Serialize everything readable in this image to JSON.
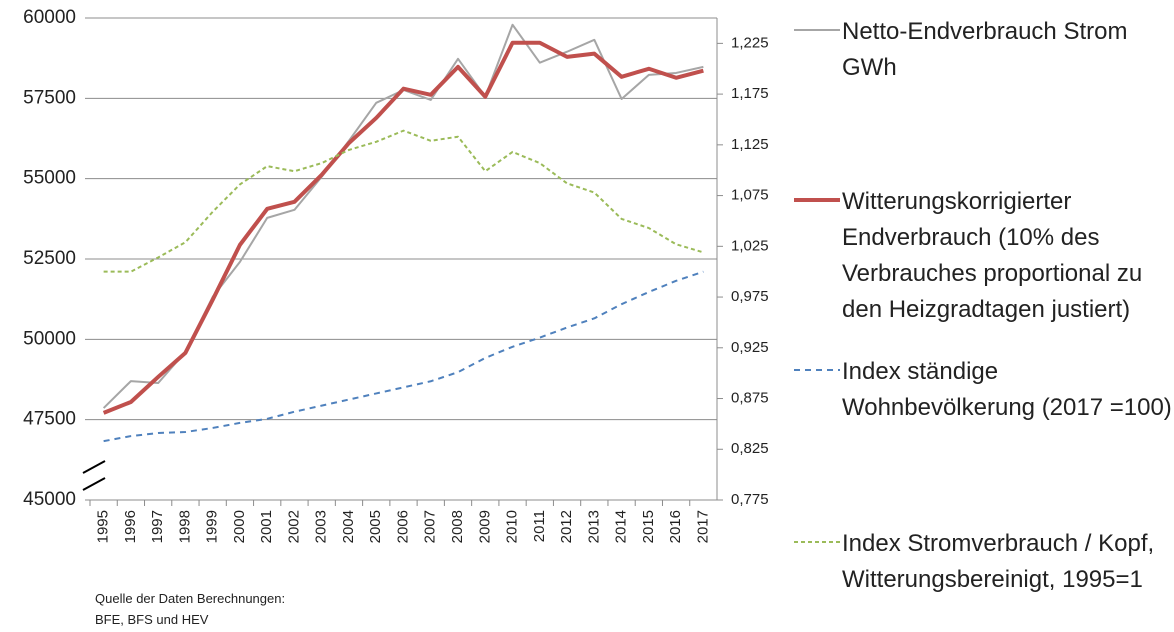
{
  "chart_data": {
    "type": "line",
    "categories": [
      "1995",
      "1996",
      "1997",
      "1998",
      "1999",
      "2000",
      "2001",
      "2002",
      "2003",
      "2004",
      "2005",
      "2006",
      "2007",
      "2008",
      "2009",
      "2010",
      "2011",
      "2012",
      "2013",
      "2014",
      "2015",
      "2016",
      "2017"
    ],
    "series": [
      {
        "name": "Netto-Endverbrauch Strom GWh",
        "color": "#a6a6a6",
        "width": 2,
        "dash": "none",
        "axis": "y",
        "values": [
          47860,
          48700,
          48640,
          49610,
          51320,
          52410,
          53780,
          54030,
          55060,
          56180,
          57360,
          57760,
          57450,
          58730,
          57550,
          59790,
          58610,
          58950,
          59320,
          57480,
          58230,
          58290,
          58480
        ]
      },
      {
        "name": "Witterungskorrigierter Endverbrauch (10% des Verbrauches proportional zu den Heizgradtagen justiert)",
        "color": "#c0504d",
        "width": 4,
        "dash": "none",
        "axis": "y",
        "values": [
          47710,
          48050,
          48830,
          49580,
          51230,
          52940,
          54060,
          54280,
          55120,
          56110,
          56890,
          57800,
          57610,
          58480,
          57550,
          59230,
          59230,
          58790,
          58890,
          58170,
          58420,
          58140,
          58360
        ]
      },
      {
        "name": "Index ständige Wohnbevölkerung (2017 =100)",
        "color": "#4f81bd",
        "width": 2,
        "dash": "6 5",
        "axis": "y2",
        "values": [
          0.833,
          0.838,
          0.841,
          0.842,
          0.846,
          0.851,
          0.855,
          0.862,
          0.868,
          0.874,
          0.88,
          0.886,
          0.892,
          0.901,
          0.915,
          0.926,
          0.935,
          0.945,
          0.954,
          0.968,
          0.98,
          0.991,
          1.0
        ]
      },
      {
        "name": "Index Stromverbrauch / Kopf, Witterungsbereinigt, 1995=1",
        "color": "#9bbb59",
        "width": 2,
        "dash": "4 3",
        "axis": "y2",
        "values": [
          1.0,
          1.0,
          1.014,
          1.029,
          1.059,
          1.086,
          1.104,
          1.099,
          1.107,
          1.12,
          1.128,
          1.139,
          1.129,
          1.133,
          1.099,
          1.118,
          1.107,
          1.087,
          1.078,
          1.052,
          1.043,
          1.027,
          1.019
        ]
      }
    ],
    "ylim": [
      45000,
      60000
    ],
    "yticks": [
      45000,
      47500,
      50000,
      52500,
      55000,
      57500,
      60000
    ],
    "y2lim": [
      0.775,
      1.25
    ],
    "y2ticks": [
      {
        "value": 0.775,
        "label": "0,775"
      },
      {
        "value": 0.825,
        "label": "0,825"
      },
      {
        "value": 0.875,
        "label": "0,875"
      },
      {
        "value": 0.925,
        "label": "0,925"
      },
      {
        "value": 0.975,
        "label": "0,975"
      },
      {
        "value": 1.025,
        "label": "1,025"
      },
      {
        "value": 1.075,
        "label": "1,075"
      },
      {
        "value": 1.125,
        "label": "1,125"
      },
      {
        "value": 1.175,
        "label": "1,175"
      },
      {
        "value": 1.225,
        "label": "1,225"
      }
    ],
    "grid": true,
    "legend": "right",
    "source": [
      "Quelle der Daten Berechnungen:",
      "BFE, BFS und HEV"
    ]
  }
}
